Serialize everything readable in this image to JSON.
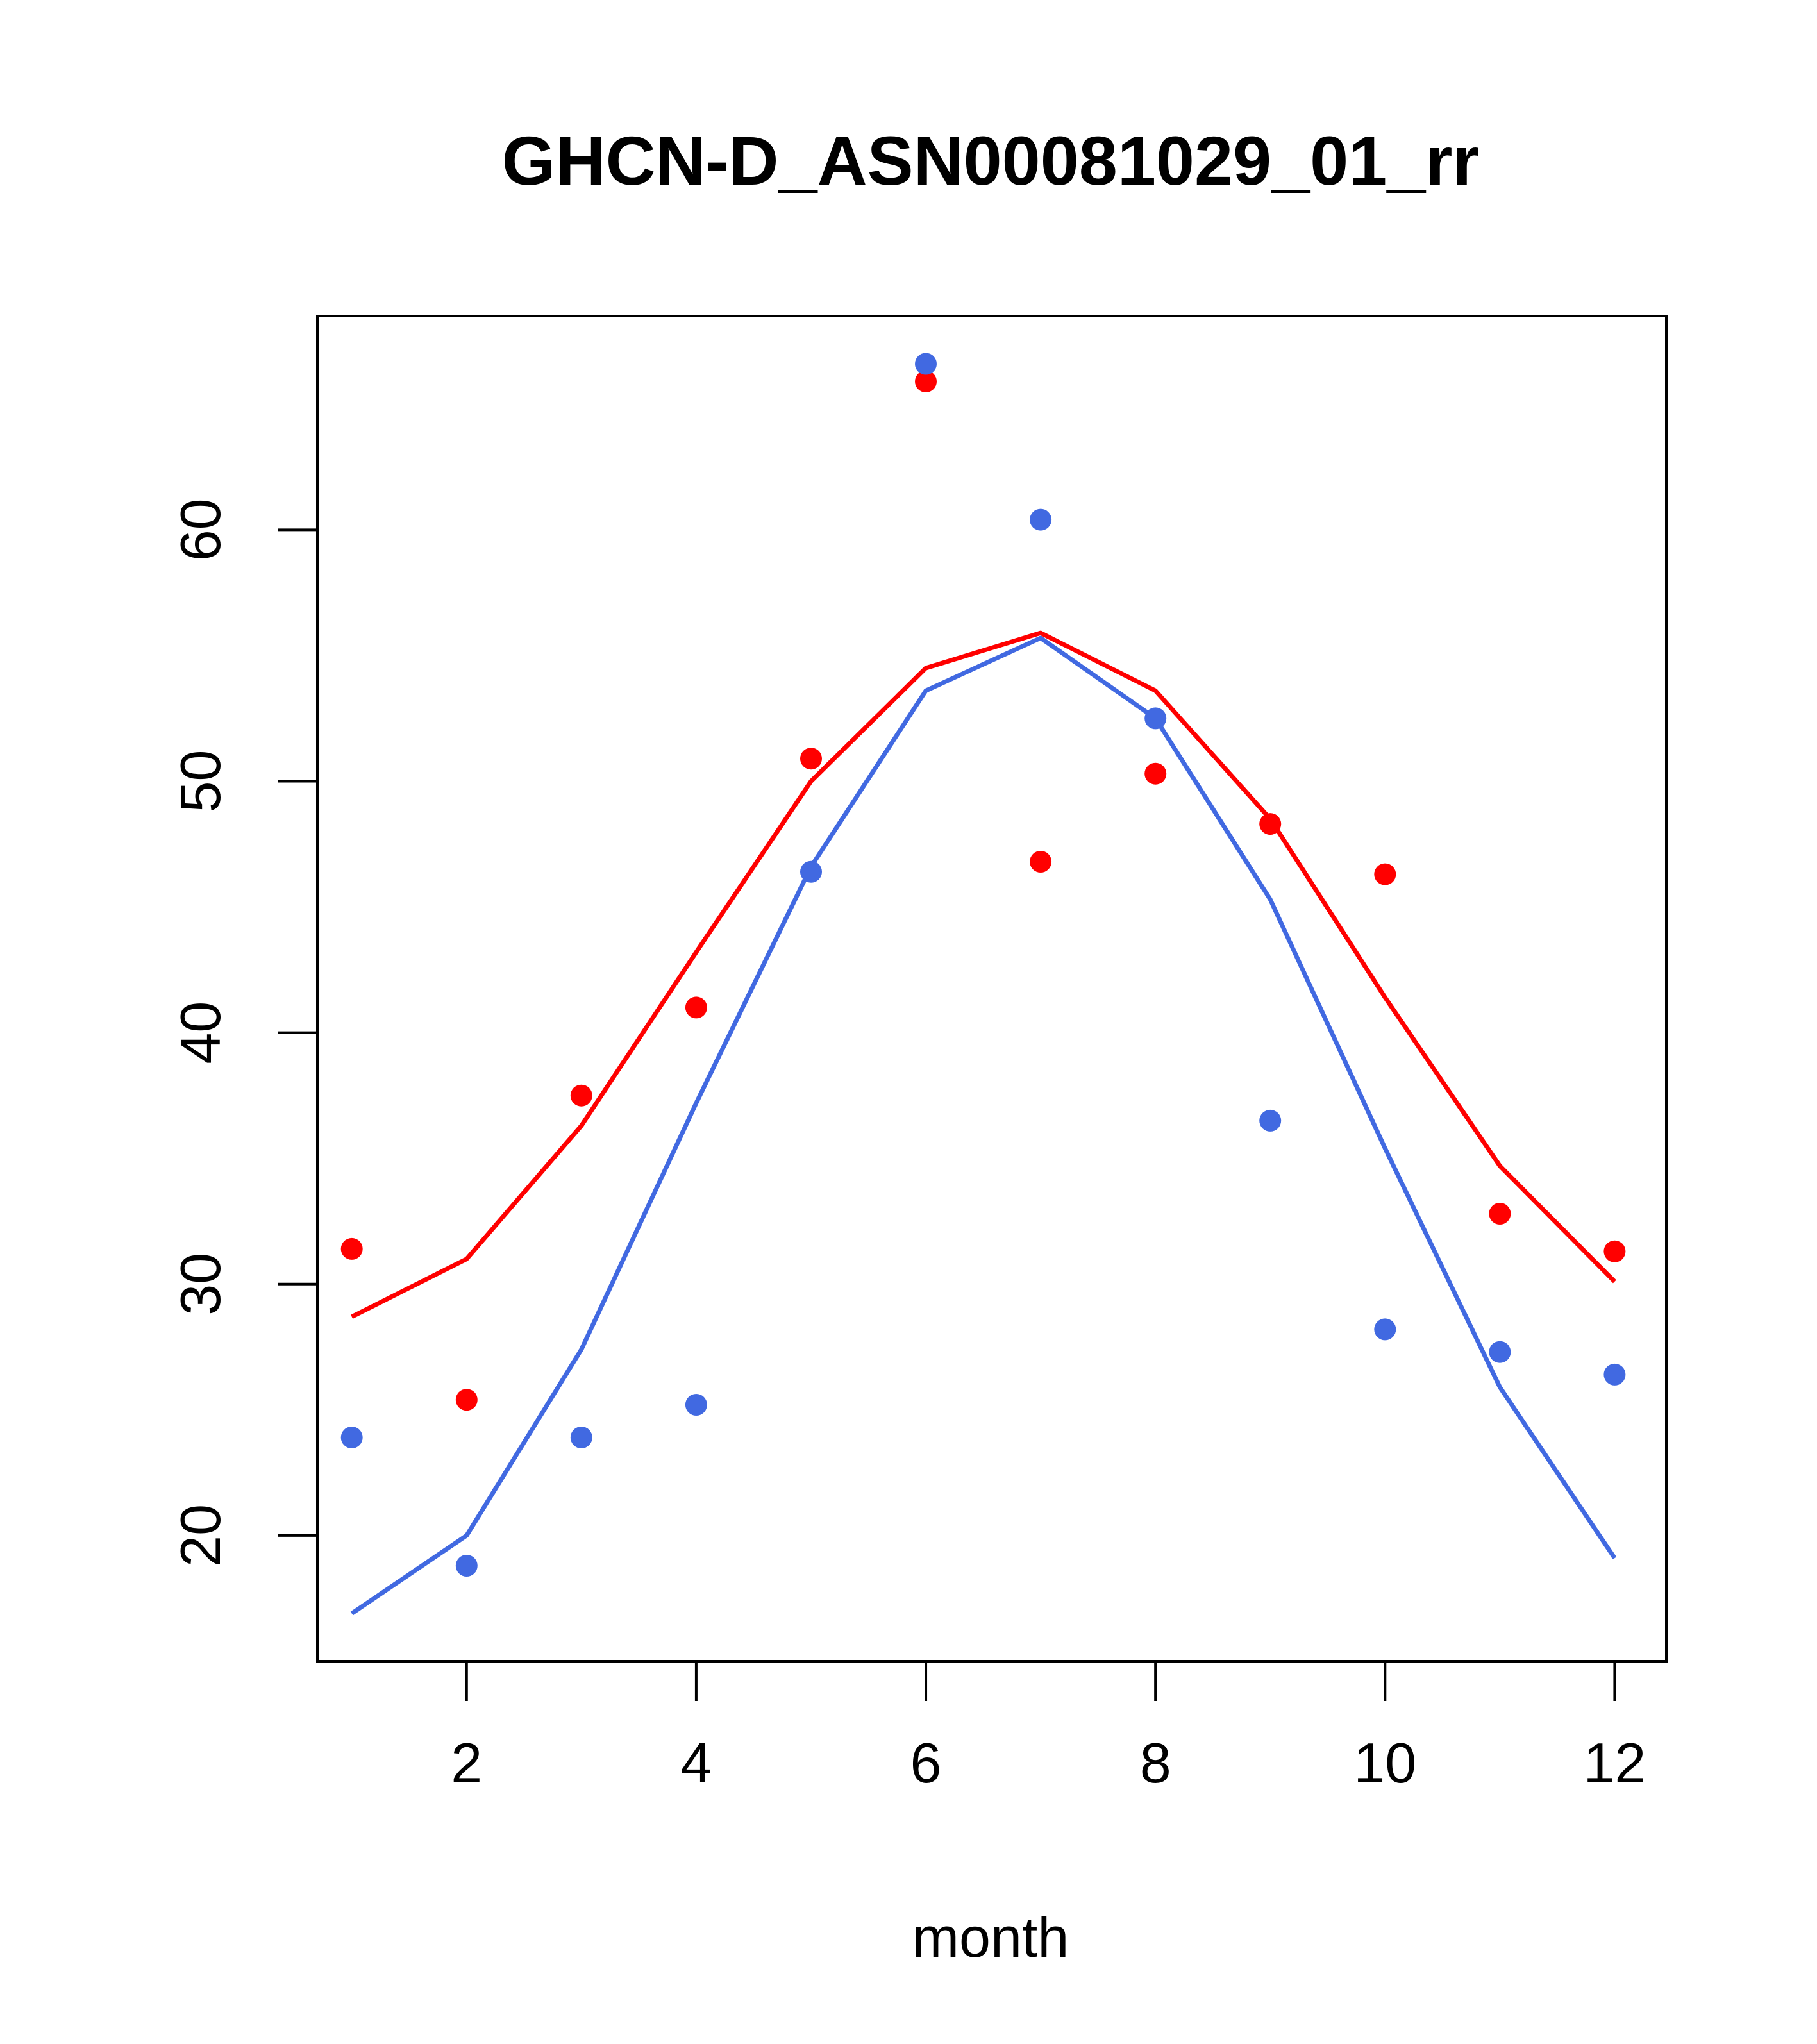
{
  "chart_data": {
    "type": "line",
    "title": "GHCN-D_ASN00081029_01_rr",
    "xlabel": "month",
    "ylabel": "",
    "xlim": [
      0.7,
      12.45
    ],
    "ylim": [
      15.0,
      68.5
    ],
    "x_ticks": [
      2,
      4,
      6,
      8,
      10,
      12
    ],
    "y_ticks": [
      20,
      30,
      40,
      50,
      60
    ],
    "grid": false,
    "legend": "none",
    "x": [
      1,
      2,
      3,
      4,
      5,
      6,
      7,
      8,
      9,
      10,
      11,
      12
    ],
    "series": [
      {
        "color": "#ff0000",
        "points": [
          31.4,
          25.4,
          37.5,
          41.0,
          50.9,
          65.9,
          46.8,
          50.3,
          48.3,
          46.3,
          32.8,
          31.3
        ],
        "line": [
          28.7,
          31.0,
          36.3,
          43.2,
          50.0,
          54.5,
          55.9,
          53.6,
          48.5,
          41.4,
          34.7,
          30.1
        ]
      },
      {
        "color": "#4169e1",
        "points": [
          23.9,
          18.8,
          23.9,
          25.2,
          46.4,
          66.6,
          60.4,
          52.5,
          36.5,
          28.2,
          27.3,
          26.4
        ],
        "line": [
          16.9,
          20.0,
          27.4,
          37.2,
          46.6,
          53.6,
          55.7,
          52.5,
          45.3,
          35.4,
          25.9,
          19.1
        ]
      }
    ]
  }
}
